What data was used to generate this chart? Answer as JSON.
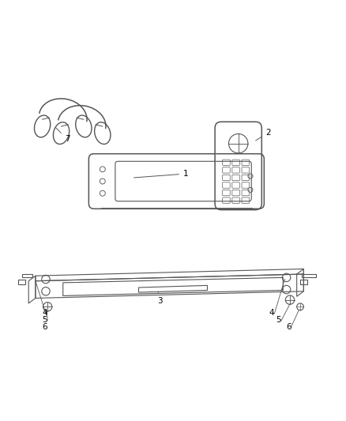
{
  "title": "",
  "background_color": "#ffffff",
  "line_color": "#555555",
  "label_color": "#000000",
  "fig_width": 4.38,
  "fig_height": 5.33,
  "dpi": 100
}
